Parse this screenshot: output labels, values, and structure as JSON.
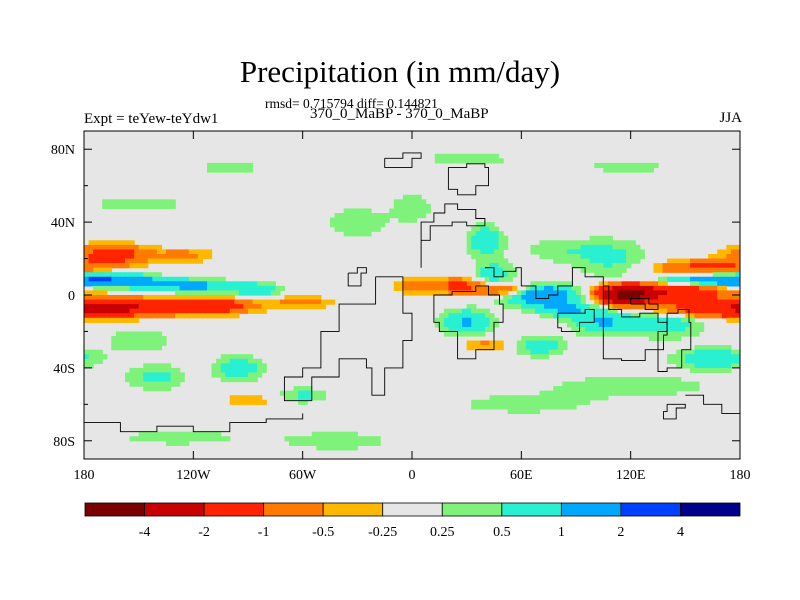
{
  "chart_data": {
    "type": "heatmap",
    "title": "Precipitation (in mm/day)",
    "stats_text": "rmsd= 0.715794 diff= 0.144821",
    "period_text": "370_0_MaBP - 370_0_MaBP",
    "left_label": "Expt = teYew-teYdw1",
    "right_label": "JJA",
    "x_ticks": [
      "180",
      "120W",
      "60W",
      "0",
      "60E",
      "120E",
      "180"
    ],
    "x_range": [
      -180,
      180
    ],
    "y_ticks": [
      "80N",
      "40N",
      "0",
      "40S",
      "80S"
    ],
    "y_range": [
      -90,
      90
    ],
    "colorbar": {
      "levels": [
        "-4",
        "-2",
        "-1",
        "-0.5",
        "-0.25",
        "0.25",
        "0.5",
        "1",
        "2",
        "4"
      ],
      "colors": [
        "#7a0000",
        "#c80000",
        "#ff2400",
        "#ff7a00",
        "#ffb800",
        "#e6e6e6",
        "#7ef27a",
        "#28f0d0",
        "#00a8ff",
        "#0040ff",
        "#00008c"
      ]
    },
    "fields": [
      {
        "lon": -165,
        "lat": 22,
        "sx": 14,
        "sy": 4,
        "v": -1.5
      },
      {
        "lon": -125,
        "lat": 22,
        "sx": 12,
        "sy": 3,
        "v": -0.6
      },
      {
        "lon": -165,
        "lat": 8,
        "sx": 18,
        "sy": 2.5,
        "v": 1.8
      },
      {
        "lon": -120,
        "lat": 5,
        "sx": 18,
        "sy": 2.5,
        "v": 1.2
      },
      {
        "lon": -85,
        "lat": 3,
        "sx": 10,
        "sy": 2.5,
        "v": 0.8
      },
      {
        "lon": -160,
        "lat": -7,
        "sx": 20,
        "sy": 3.5,
        "v": -2.2
      },
      {
        "lon": -110,
        "lat": -6,
        "sx": 16,
        "sy": 3,
        "v": -1.8
      },
      {
        "lon": -60,
        "lat": -4,
        "sx": 12,
        "sy": 2.5,
        "v": -0.7
      },
      {
        "lon": -150,
        "lat": -25,
        "sx": 16,
        "sy": 6,
        "v": 0.4
      },
      {
        "lon": -140,
        "lat": -45,
        "sx": 12,
        "sy": 5,
        "v": 0.6
      },
      {
        "lon": -95,
        "lat": -40,
        "sx": 10,
        "sy": 5,
        "v": 0.8
      },
      {
        "lon": -90,
        "lat": -58,
        "sx": 12,
        "sy": 3,
        "v": -0.4
      },
      {
        "lon": -60,
        "lat": -55,
        "sx": 10,
        "sy": 3,
        "v": 0.6
      },
      {
        "lon": -130,
        "lat": -78,
        "sx": 30,
        "sy": 4,
        "v": 0.35
      },
      {
        "lon": -40,
        "lat": -80,
        "sx": 30,
        "sy": 5,
        "v": 0.35
      },
      {
        "lon": -150,
        "lat": 50,
        "sx": 25,
        "sy": 4,
        "v": 0.35
      },
      {
        "lon": -100,
        "lat": 70,
        "sx": 30,
        "sy": 3,
        "v": 0.3
      },
      {
        "lon": 30,
        "lat": 75,
        "sx": 40,
        "sy": 3,
        "v": 0.3
      },
      {
        "lon": 120,
        "lat": 70,
        "sx": 30,
        "sy": 3,
        "v": 0.3
      },
      {
        "lon": -30,
        "lat": 40,
        "sx": 12,
        "sy": 6,
        "v": 0.5
      },
      {
        "lon": 0,
        "lat": 48,
        "sx": 8,
        "sy": 6,
        "v": 0.5
      },
      {
        "lon": 0,
        "lat": 5,
        "sx": 6,
        "sy": 3,
        "v": -0.9
      },
      {
        "lon": 25,
        "lat": 5,
        "sx": 10,
        "sy": 3,
        "v": -1.2
      },
      {
        "lon": 50,
        "lat": 3,
        "sx": 10,
        "sy": 3,
        "v": -1.6
      },
      {
        "lon": 45,
        "lat": 10,
        "sx": 8,
        "sy": 6,
        "v": 0.8
      },
      {
        "lon": 40,
        "lat": 30,
        "sx": 7,
        "sy": 6,
        "v": 0.9
      },
      {
        "lon": 70,
        "lat": 0,
        "sx": 15,
        "sy": 4,
        "v": 1.8
      },
      {
        "lon": 85,
        "lat": -8,
        "sx": 12,
        "sy": 3,
        "v": 0.9
      },
      {
        "lon": 30,
        "lat": -15,
        "sx": 10,
        "sy": 5,
        "v": 1.1
      },
      {
        "lon": 40,
        "lat": -27,
        "sx": 10,
        "sy": 3,
        "v": -0.6
      },
      {
        "lon": 70,
        "lat": -28,
        "sx": 10,
        "sy": 4,
        "v": 0.8
      },
      {
        "lon": 80,
        "lat": 25,
        "sx": 15,
        "sy": 5,
        "v": 0.4
      },
      {
        "lon": 110,
        "lat": 20,
        "sx": 15,
        "sy": 8,
        "v": 0.6
      },
      {
        "lon": 118,
        "lat": 0,
        "sx": 10,
        "sy": 3.5,
        "v": -4.5
      },
      {
        "lon": 145,
        "lat": 2,
        "sx": 22,
        "sy": 4,
        "v": -1.8
      },
      {
        "lon": 160,
        "lat": 15,
        "sx": 20,
        "sy": 3,
        "v": -1.2
      },
      {
        "lon": 160,
        "lat": 8,
        "sx": 20,
        "sy": 2.5,
        "v": 1.6
      },
      {
        "lon": 160,
        "lat": -8,
        "sx": 20,
        "sy": 3,
        "v": -1.5
      },
      {
        "lon": 140,
        "lat": -15,
        "sx": 15,
        "sy": 6,
        "v": 0.8
      },
      {
        "lon": 105,
        "lat": -15,
        "sx": 12,
        "sy": 5,
        "v": 1.0
      },
      {
        "lon": 165,
        "lat": -35,
        "sx": 15,
        "sy": 4,
        "v": 0.9
      },
      {
        "lon": 120,
        "lat": -50,
        "sx": 40,
        "sy": 5,
        "v": 0.4
      },
      {
        "lon": 60,
        "lat": -60,
        "sx": 30,
        "sy": 4,
        "v": 0.4
      }
    ],
    "coastlines": [
      [
        [
          -20,
          10
        ],
        [
          -10,
          10
        ],
        [
          -5,
          5
        ],
        [
          -5,
          -10
        ],
        [
          0,
          -25
        ],
        [
          -5,
          -40
        ],
        [
          -15,
          -55
        ],
        [
          -22,
          -40
        ],
        [
          -25,
          -35
        ],
        [
          -40,
          -45
        ],
        [
          -55,
          -58
        ],
        [
          -70,
          -58
        ],
        [
          -70,
          -45
        ],
        [
          -60,
          -40
        ],
        [
          -50,
          -20
        ],
        [
          -40,
          -5
        ],
        [
          -20,
          10
        ]
      ],
      [
        [
          -35,
          12
        ],
        [
          -30,
          15
        ],
        [
          -25,
          12
        ],
        [
          -28,
          5
        ],
        [
          -35,
          12
        ]
      ],
      [
        [
          5,
          15
        ],
        [
          5,
          30
        ],
        [
          10,
          38
        ],
        [
          22,
          40
        ],
        [
          30,
          38
        ],
        [
          40,
          42
        ],
        [
          35,
          47
        ],
        [
          25,
          50
        ],
        [
          18,
          45
        ],
        [
          12,
          40
        ],
        [
          5,
          30
        ]
      ],
      [
        [
          35,
          5
        ],
        [
          42,
          0
        ],
        [
          48,
          -5
        ],
        [
          50,
          -15
        ],
        [
          45,
          -30
        ],
        [
          35,
          -35
        ],
        [
          25,
          -20
        ],
        [
          15,
          -15
        ],
        [
          12,
          0
        ],
        [
          22,
          2
        ],
        [
          35,
          5
        ]
      ],
      [
        [
          40,
          15
        ],
        [
          45,
          10
        ],
        [
          50,
          13
        ],
        [
          57,
          15
        ],
        [
          60,
          5
        ],
        [
          68,
          -2
        ],
        [
          75,
          0
        ],
        [
          80,
          5
        ],
        [
          88,
          15
        ],
        [
          95,
          10
        ],
        [
          105,
          5
        ]
      ],
      [
        [
          105,
          5
        ],
        [
          108,
          -8
        ],
        [
          115,
          -12
        ],
        [
          125,
          -10
        ],
        [
          135,
          -15
        ],
        [
          140,
          -22
        ],
        [
          138,
          -30
        ],
        [
          128,
          -36
        ],
        [
          115,
          -35
        ],
        [
          105,
          -22
        ],
        [
          105,
          5
        ]
      ],
      [
        [
          80,
          -10
        ],
        [
          95,
          -8
        ],
        [
          100,
          -15
        ],
        [
          92,
          -20
        ],
        [
          82,
          -18
        ],
        [
          80,
          -10
        ]
      ],
      [
        [
          120,
          -5
        ],
        [
          128,
          -8
        ],
        [
          135,
          -5
        ],
        [
          130,
          -2
        ],
        [
          120,
          -5
        ]
      ],
      [
        [
          140,
          -10
        ],
        [
          146,
          -8
        ],
        [
          152,
          -15
        ],
        [
          153,
          -30
        ],
        [
          148,
          -40
        ],
        [
          140,
          -42
        ],
        [
          135,
          -35
        ],
        [
          135,
          -20
        ],
        [
          140,
          -10
        ]
      ],
      [
        [
          150,
          -55
        ],
        [
          160,
          -60
        ],
        [
          170,
          -65
        ],
        [
          180,
          -70
        ]
      ],
      [
        [
          -180,
          -70
        ],
        [
          -160,
          -75
        ],
        [
          -140,
          -72
        ],
        [
          -120,
          -75
        ],
        [
          -100,
          -70
        ],
        [
          -80,
          -68
        ],
        [
          -60,
          -65
        ]
      ],
      [
        [
          20,
          70
        ],
        [
          30,
          72
        ],
        [
          40,
          70
        ],
        [
          42,
          60
        ],
        [
          35,
          55
        ],
        [
          25,
          58
        ],
        [
          20,
          70
        ]
      ],
      [
        [
          -15,
          75
        ],
        [
          -5,
          78
        ],
        [
          5,
          75
        ],
        [
          0,
          70
        ],
        [
          -10,
          70
        ],
        [
          -15,
          75
        ]
      ],
      [
        [
          140,
          -60
        ],
        [
          150,
          -62
        ],
        [
          145,
          -68
        ],
        [
          138,
          -64
        ],
        [
          140,
          -60
        ]
      ]
    ]
  }
}
